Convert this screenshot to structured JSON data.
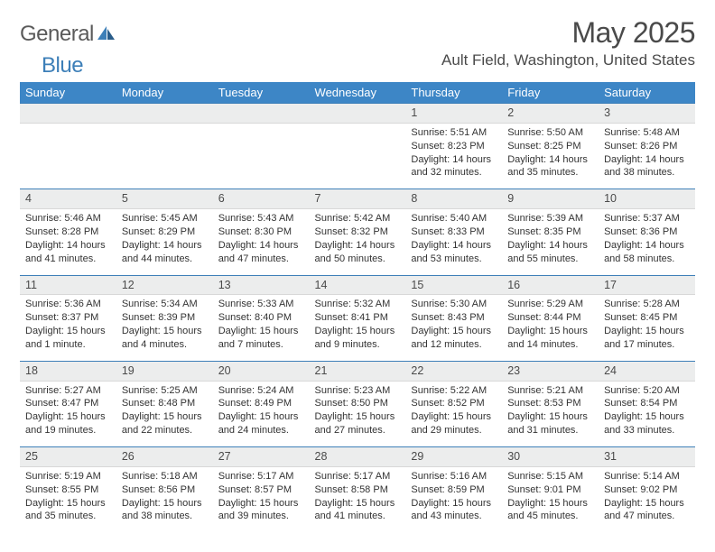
{
  "brand": {
    "part1": "General",
    "part2": "Blue"
  },
  "title": "May 2025",
  "location": "Ault Field, Washington, United States",
  "day_headers": [
    "Sunday",
    "Monday",
    "Tuesday",
    "Wednesday",
    "Thursday",
    "Friday",
    "Saturday"
  ],
  "colors": {
    "header_bg": "#3d86c6",
    "header_text": "#ffffff",
    "daynum_bg": "#eceded",
    "row_border_top": "#3d7fb8",
    "text_dark": "#4a4a4a",
    "detail_text": "#333333",
    "brand_gray": "#5a5a5a",
    "brand_blue": "#3d7fb8",
    "background": "#ffffff"
  },
  "typography": {
    "title_fontsize": 32,
    "location_fontsize": 17,
    "header_fontsize": 13,
    "daynum_fontsize": 12.5,
    "detail_fontsize": 11,
    "logo_fontsize": 24
  },
  "weeks": [
    {
      "nums": [
        "",
        "",
        "",
        "",
        "1",
        "2",
        "3"
      ],
      "details": [
        "",
        "",
        "",
        "",
        "Sunrise: 5:51 AM\nSunset: 8:23 PM\nDaylight: 14 hours and 32 minutes.",
        "Sunrise: 5:50 AM\nSunset: 8:25 PM\nDaylight: 14 hours and 35 minutes.",
        "Sunrise: 5:48 AM\nSunset: 8:26 PM\nDaylight: 14 hours and 38 minutes."
      ]
    },
    {
      "nums": [
        "4",
        "5",
        "6",
        "7",
        "8",
        "9",
        "10"
      ],
      "details": [
        "Sunrise: 5:46 AM\nSunset: 8:28 PM\nDaylight: 14 hours and 41 minutes.",
        "Sunrise: 5:45 AM\nSunset: 8:29 PM\nDaylight: 14 hours and 44 minutes.",
        "Sunrise: 5:43 AM\nSunset: 8:30 PM\nDaylight: 14 hours and 47 minutes.",
        "Sunrise: 5:42 AM\nSunset: 8:32 PM\nDaylight: 14 hours and 50 minutes.",
        "Sunrise: 5:40 AM\nSunset: 8:33 PM\nDaylight: 14 hours and 53 minutes.",
        "Sunrise: 5:39 AM\nSunset: 8:35 PM\nDaylight: 14 hours and 55 minutes.",
        "Sunrise: 5:37 AM\nSunset: 8:36 PM\nDaylight: 14 hours and 58 minutes."
      ]
    },
    {
      "nums": [
        "11",
        "12",
        "13",
        "14",
        "15",
        "16",
        "17"
      ],
      "details": [
        "Sunrise: 5:36 AM\nSunset: 8:37 PM\nDaylight: 15 hours and 1 minute.",
        "Sunrise: 5:34 AM\nSunset: 8:39 PM\nDaylight: 15 hours and 4 minutes.",
        "Sunrise: 5:33 AM\nSunset: 8:40 PM\nDaylight: 15 hours and 7 minutes.",
        "Sunrise: 5:32 AM\nSunset: 8:41 PM\nDaylight: 15 hours and 9 minutes.",
        "Sunrise: 5:30 AM\nSunset: 8:43 PM\nDaylight: 15 hours and 12 minutes.",
        "Sunrise: 5:29 AM\nSunset: 8:44 PM\nDaylight: 15 hours and 14 minutes.",
        "Sunrise: 5:28 AM\nSunset: 8:45 PM\nDaylight: 15 hours and 17 minutes."
      ]
    },
    {
      "nums": [
        "18",
        "19",
        "20",
        "21",
        "22",
        "23",
        "24"
      ],
      "details": [
        "Sunrise: 5:27 AM\nSunset: 8:47 PM\nDaylight: 15 hours and 19 minutes.",
        "Sunrise: 5:25 AM\nSunset: 8:48 PM\nDaylight: 15 hours and 22 minutes.",
        "Sunrise: 5:24 AM\nSunset: 8:49 PM\nDaylight: 15 hours and 24 minutes.",
        "Sunrise: 5:23 AM\nSunset: 8:50 PM\nDaylight: 15 hours and 27 minutes.",
        "Sunrise: 5:22 AM\nSunset: 8:52 PM\nDaylight: 15 hours and 29 minutes.",
        "Sunrise: 5:21 AM\nSunset: 8:53 PM\nDaylight: 15 hours and 31 minutes.",
        "Sunrise: 5:20 AM\nSunset: 8:54 PM\nDaylight: 15 hours and 33 minutes."
      ]
    },
    {
      "nums": [
        "25",
        "26",
        "27",
        "28",
        "29",
        "30",
        "31"
      ],
      "details": [
        "Sunrise: 5:19 AM\nSunset: 8:55 PM\nDaylight: 15 hours and 35 minutes.",
        "Sunrise: 5:18 AM\nSunset: 8:56 PM\nDaylight: 15 hours and 38 minutes.",
        "Sunrise: 5:17 AM\nSunset: 8:57 PM\nDaylight: 15 hours and 39 minutes.",
        "Sunrise: 5:17 AM\nSunset: 8:58 PM\nDaylight: 15 hours and 41 minutes.",
        "Sunrise: 5:16 AM\nSunset: 8:59 PM\nDaylight: 15 hours and 43 minutes.",
        "Sunrise: 5:15 AM\nSunset: 9:01 PM\nDaylight: 15 hours and 45 minutes.",
        "Sunrise: 5:14 AM\nSunset: 9:02 PM\nDaylight: 15 hours and 47 minutes."
      ]
    }
  ]
}
